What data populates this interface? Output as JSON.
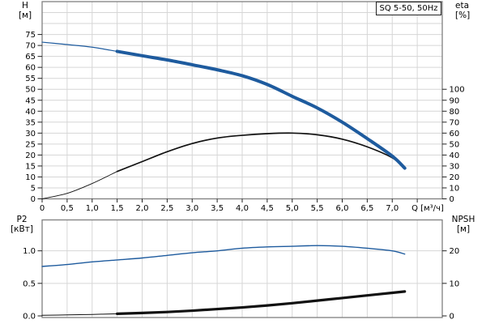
{
  "header": {
    "model_label": "SQ 5-50, 50Hz"
  },
  "top_chart": {
    "left_axis": {
      "title": "H",
      "unit": "[м]",
      "tick_labels": [
        "0",
        "5",
        "10",
        "15",
        "20",
        "25",
        "30",
        "35",
        "40",
        "45",
        "50",
        "55",
        "60",
        "65",
        "70",
        "75"
      ]
    },
    "right_axis": {
      "title": "eta",
      "unit": "[%]",
      "tick_labels": [
        "0",
        "10",
        "20",
        "30",
        "40",
        "50",
        "60",
        "70",
        "80",
        "90",
        "100"
      ]
    },
    "x_axis": {
      "title": "Q [м³/ч]",
      "tick_labels": [
        "0",
        "0,5",
        "1,0",
        "1,5",
        "2,0",
        "2,5",
        "3,0",
        "3,5",
        "4,0",
        "4,5",
        "5,0",
        "5,5",
        "6,0",
        "6,5",
        "7,0"
      ]
    }
  },
  "bottom_chart": {
    "left_axis": {
      "title": "P2",
      "unit": "[кВт]",
      "tick_labels": [
        "0.0",
        "0.5",
        "1.0"
      ]
    },
    "right_axis": {
      "title": "NPSH",
      "unit": "[м]",
      "tick_labels": [
        "0",
        "10",
        "20"
      ]
    }
  },
  "colors": {
    "curve_blue": "#1E5B9E",
    "curve_black": "#111111",
    "grid": "#d6d6d6",
    "frame": "#7f7f7f",
    "tick": "#222222",
    "text": "#000000"
  },
  "chart_data": [
    {
      "type": "line",
      "title": "SQ 5-50, 50Hz",
      "xlabel": "Q [м³/ч]",
      "xlim": [
        0,
        8
      ],
      "grid": true,
      "x": [
        0,
        0.5,
        1,
        1.5,
        2,
        2.5,
        3,
        3.5,
        4,
        4.5,
        5,
        5.5,
        6,
        6.5,
        7,
        7.25
      ],
      "series": [
        {
          "name": "H",
          "unit": "м",
          "axis": "left",
          "ylim": [
            0,
            90
          ],
          "color": "#1E5B9E",
          "values": [
            71.5,
            70.4,
            69.2,
            67.3,
            65.3,
            63.4,
            61.2,
            58.9,
            56.2,
            52.2,
            46.8,
            41.5,
            35,
            27.5,
            19.5,
            14
          ]
        },
        {
          "name": "eta",
          "unit": "%",
          "axis": "right",
          "ylim": [
            0,
            180
          ],
          "color": "#111111",
          "values": [
            0,
            5,
            14,
            25,
            34,
            43,
            50.5,
            55.5,
            58,
            59.5,
            60,
            58.5,
            54.5,
            47.5,
            37.5,
            28
          ]
        }
      ]
    },
    {
      "type": "line",
      "title": "",
      "xlabel": "Q [м³/ч]",
      "xlim": [
        0,
        8
      ],
      "grid": true,
      "x": [
        0,
        0.5,
        1,
        1.5,
        2,
        2.5,
        3,
        3.5,
        4,
        4.5,
        5,
        5.5,
        6,
        6.5,
        7,
        7.25
      ],
      "series": [
        {
          "name": "P2",
          "unit": "кВт",
          "axis": "left",
          "ylim": [
            0,
            1.475
          ],
          "color": "#1E5B9E",
          "values": [
            0.76,
            0.79,
            0.83,
            0.86,
            0.89,
            0.93,
            0.97,
            1.0,
            1.04,
            1.06,
            1.07,
            1.08,
            1.07,
            1.04,
            1.0,
            0.95
          ]
        },
        {
          "name": "NPSH",
          "unit": "м",
          "axis": "right",
          "ylim": [
            0,
            29.5
          ],
          "color": "#111111",
          "values": [
            0.2,
            0.3,
            0.45,
            0.65,
            0.9,
            1.2,
            1.6,
            2.1,
            2.6,
            3.2,
            3.9,
            4.7,
            5.5,
            6.3,
            7.1,
            7.5
          ]
        }
      ]
    }
  ]
}
